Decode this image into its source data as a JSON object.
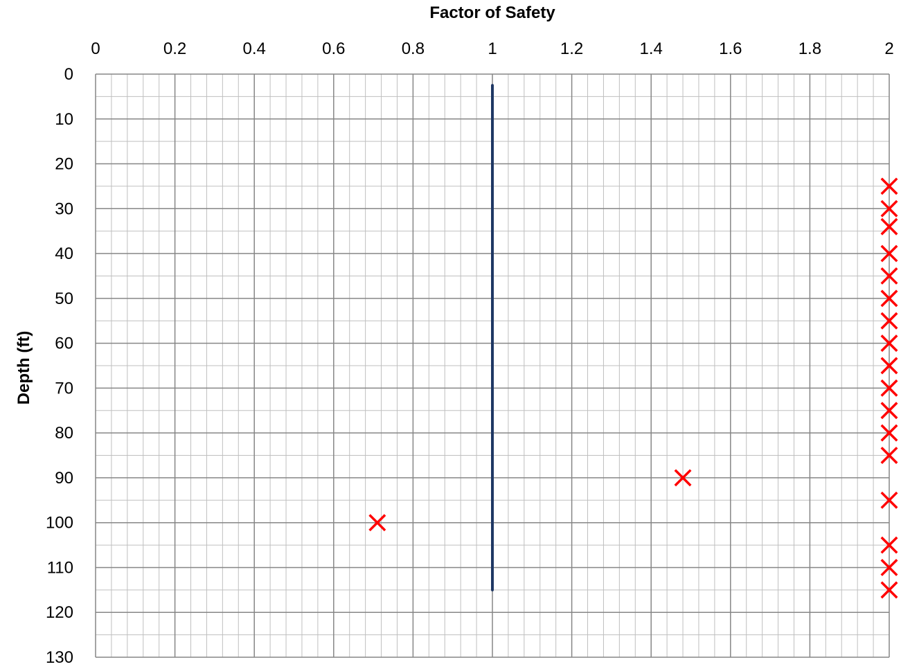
{
  "chart_data": {
    "type": "scatter",
    "xlabel": "Factor of Safety",
    "ylabel": "Depth (ft)",
    "xlim": [
      0,
      2
    ],
    "ylim": [
      0,
      130
    ],
    "y_inverted": true,
    "x_axis_position": "top",
    "x_ticks": [
      "0",
      "0.2",
      "0.4",
      "0.6",
      "0.8",
      "1",
      "1.2",
      "1.4",
      "1.6",
      "1.8",
      "2"
    ],
    "y_ticks": [
      "0",
      "10",
      "20",
      "30",
      "40",
      "50",
      "60",
      "70",
      "80",
      "90",
      "100",
      "110",
      "120",
      "130"
    ],
    "grid": true,
    "legend": "none",
    "series": [
      {
        "type": "line",
        "color": "#1f3864",
        "points": [
          [
            1,
            2.5
          ],
          [
            1,
            115
          ]
        ]
      },
      {
        "type": "scatter",
        "marker": "x",
        "color": "#ff0000",
        "points": [
          [
            2,
            25
          ],
          [
            2,
            30
          ],
          [
            2,
            34
          ],
          [
            2,
            40
          ],
          [
            2,
            45
          ],
          [
            2,
            50
          ],
          [
            2,
            55
          ],
          [
            2,
            60
          ],
          [
            2,
            65
          ],
          [
            2,
            70
          ],
          [
            2,
            75
          ],
          [
            2,
            80
          ],
          [
            2,
            85
          ],
          [
            1.48,
            90
          ],
          [
            2,
            95
          ],
          [
            0.71,
            100
          ],
          [
            2,
            105
          ],
          [
            2,
            110
          ],
          [
            2,
            115
          ]
        ]
      }
    ]
  }
}
